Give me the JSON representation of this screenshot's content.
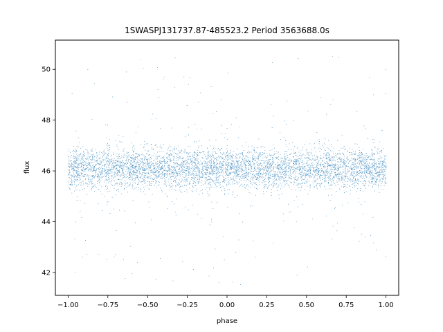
{
  "chart_data": {
    "type": "scatter",
    "title": "1SWASPJ131737.87-485523.2 Period 3563688.0s",
    "xlabel": "phase",
    "ylabel": "flux",
    "xlim": [
      -1.08,
      1.08
    ],
    "ylim": [
      41.1,
      51.15
    ],
    "x_ticks": [
      -1.0,
      -0.75,
      -0.5,
      -0.25,
      0.0,
      0.25,
      0.5,
      0.75,
      1.0
    ],
    "x_tick_labels": [
      "−1.00",
      "−0.75",
      "−0.50",
      "−0.25",
      "0.00",
      "0.25",
      "0.50",
      "0.75",
      "1.00"
    ],
    "y_ticks": [
      42,
      44,
      46,
      48,
      50
    ],
    "y_tick_labels": [
      "42",
      "44",
      "46",
      "48",
      "50"
    ],
    "grid": false,
    "marker_color": "#1f77b4",
    "series": [
      {
        "phase_range": [
          -1.0,
          1.0
        ],
        "flux_center": 46.1,
        "flux_core_range": [
          45.0,
          47.2
        ],
        "flux_outlier_range": [
          41.5,
          50.6
        ],
        "point_count_estimate": 12000,
        "notes_visible_structure": "dense horizontal band centered near flux 46, repeated in two cycles (phase -1..0 and 0..1), with vertical streak outliers"
      }
    ]
  }
}
